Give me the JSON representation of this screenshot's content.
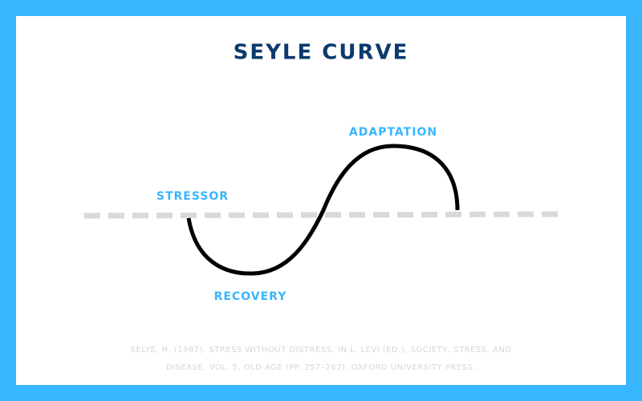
{
  "title": "SEYLE CURVE",
  "labels": {
    "stressor": "STRESSOR",
    "adaptation": "ADAPTATION",
    "recovery": "RECOVERY"
  },
  "citation": [
    "SELYE, H. (1987). STRESS WITHOUT DISTRESS. IN L. LEVI (ED.), SOCIETY, STRESS, AND",
    "DISEASE, VOL. 5, OLD AGE (PP. 257–262). OXFORD UNIVERSITY PRESS."
  ]
}
